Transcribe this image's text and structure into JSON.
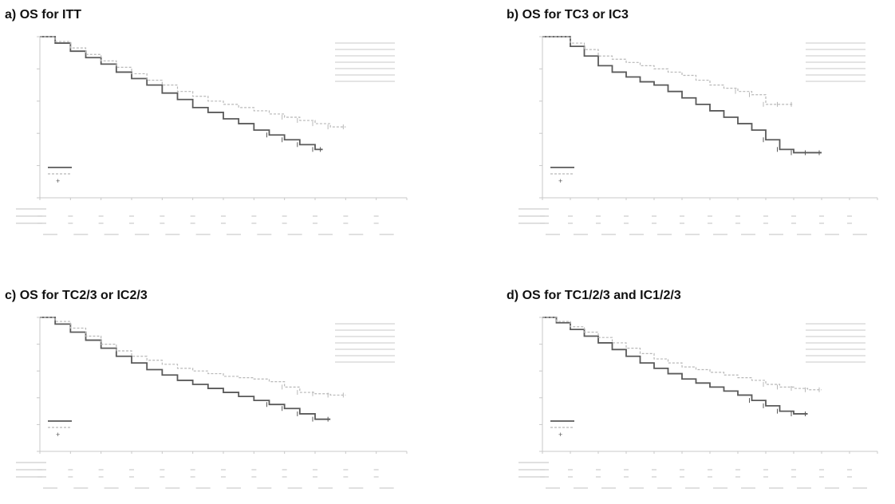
{
  "panels": [
    {
      "label": "a)",
      "title": "OS for ITT"
    },
    {
      "label": "b)",
      "title": "OS for TC3 or IC3"
    },
    {
      "label": "c)",
      "title": "OS for TC2/3 or IC2/3"
    },
    {
      "label": "d)",
      "title": "OS for TC1/2/3 and IC1/2/3"
    }
  ],
  "colors": {
    "docetaxel": "#5a5a5a",
    "atezolizumab": "#b8b8b8",
    "text": "#111111",
    "faint": "#c8c8c8"
  },
  "chart_data": [
    {
      "type": "line",
      "xlim": [
        0,
        24
      ],
      "ylim": [
        0,
        100
      ],
      "series": [
        {
          "key": "docetaxel",
          "step": true,
          "x": [
            0,
            1,
            2,
            3,
            4,
            5,
            6,
            7,
            8,
            9,
            10,
            11,
            12,
            13,
            14,
            15,
            16,
            17,
            18,
            18.5
          ],
          "y": [
            100,
            96,
            91,
            87,
            83,
            78,
            74,
            70,
            65,
            61,
            56,
            53,
            49,
            46,
            42,
            39,
            36,
            33,
            30,
            30
          ]
        },
        {
          "key": "atezolizumab",
          "step": true,
          "x": [
            0,
            1,
            2,
            3,
            4,
            5,
            6,
            7,
            8,
            9,
            10,
            11,
            12,
            13,
            14,
            15,
            16,
            17,
            18,
            19,
            20
          ],
          "y": [
            100,
            97,
            93,
            89,
            85,
            81,
            77,
            73,
            70,
            66,
            63,
            60,
            58,
            56,
            54,
            52,
            50,
            48,
            46,
            44,
            44
          ]
        }
      ]
    },
    {
      "type": "line",
      "xlim": [
        0,
        24
      ],
      "ylim": [
        0,
        100
      ],
      "series": [
        {
          "key": "docetaxel",
          "step": true,
          "x": [
            0,
            2,
            3,
            4,
            5,
            6,
            7,
            8,
            9,
            10,
            11,
            12,
            13,
            14,
            15,
            16,
            17,
            18,
            19,
            20
          ],
          "y": [
            100,
            94,
            88,
            82,
            78,
            75,
            72,
            70,
            66,
            62,
            58,
            54,
            50,
            46,
            42,
            36,
            30,
            28,
            28,
            28
          ]
        },
        {
          "key": "atezolizumab",
          "step": true,
          "x": [
            0,
            2,
            3,
            4,
            5,
            6,
            7,
            8,
            9,
            10,
            11,
            12,
            13,
            14,
            15,
            16,
            17,
            18
          ],
          "y": [
            100,
            96,
            92,
            88,
            86,
            84,
            82,
            80,
            78,
            76,
            73,
            70,
            68,
            66,
            64,
            58,
            58,
            58
          ]
        }
      ]
    },
    {
      "type": "line",
      "xlim": [
        0,
        24
      ],
      "ylim": [
        0,
        100
      ],
      "series": [
        {
          "key": "docetaxel",
          "step": true,
          "x": [
            0,
            1,
            2,
            3,
            4,
            5,
            6,
            7,
            8,
            9,
            10,
            11,
            12,
            13,
            14,
            15,
            16,
            17,
            18,
            19
          ],
          "y": [
            100,
            95,
            89,
            83,
            77,
            71,
            66,
            61,
            57,
            53,
            50,
            47,
            44,
            41,
            38,
            35,
            32,
            28,
            24,
            24
          ]
        },
        {
          "key": "atezolizumab",
          "step": true,
          "x": [
            0,
            1,
            2,
            3,
            4,
            5,
            6,
            7,
            8,
            9,
            10,
            11,
            12,
            13,
            14,
            15,
            16,
            17,
            18,
            19,
            20
          ],
          "y": [
            100,
            97,
            92,
            86,
            80,
            75,
            71,
            68,
            65,
            62,
            60,
            58,
            56,
            55,
            54,
            52,
            48,
            44,
            43,
            42,
            42
          ]
        }
      ]
    },
    {
      "type": "line",
      "xlim": [
        0,
        24
      ],
      "ylim": [
        0,
        100
      ],
      "series": [
        {
          "key": "docetaxel",
          "step": true,
          "x": [
            0,
            1,
            2,
            3,
            4,
            5,
            6,
            7,
            8,
            9,
            10,
            11,
            12,
            13,
            14,
            15,
            16,
            17,
            18,
            19
          ],
          "y": [
            100,
            96,
            91,
            86,
            81,
            76,
            71,
            66,
            62,
            58,
            54,
            51,
            48,
            45,
            42,
            38,
            34,
            30,
            28,
            28
          ]
        },
        {
          "key": "atezolizumab",
          "step": true,
          "x": [
            0,
            1,
            2,
            3,
            4,
            5,
            6,
            7,
            8,
            9,
            10,
            11,
            12,
            13,
            14,
            15,
            16,
            17,
            18,
            19,
            20
          ],
          "y": [
            100,
            97,
            93,
            89,
            85,
            81,
            77,
            73,
            69,
            66,
            63,
            61,
            59,
            57,
            55,
            53,
            50,
            48,
            47,
            46,
            46
          ]
        }
      ]
    }
  ]
}
